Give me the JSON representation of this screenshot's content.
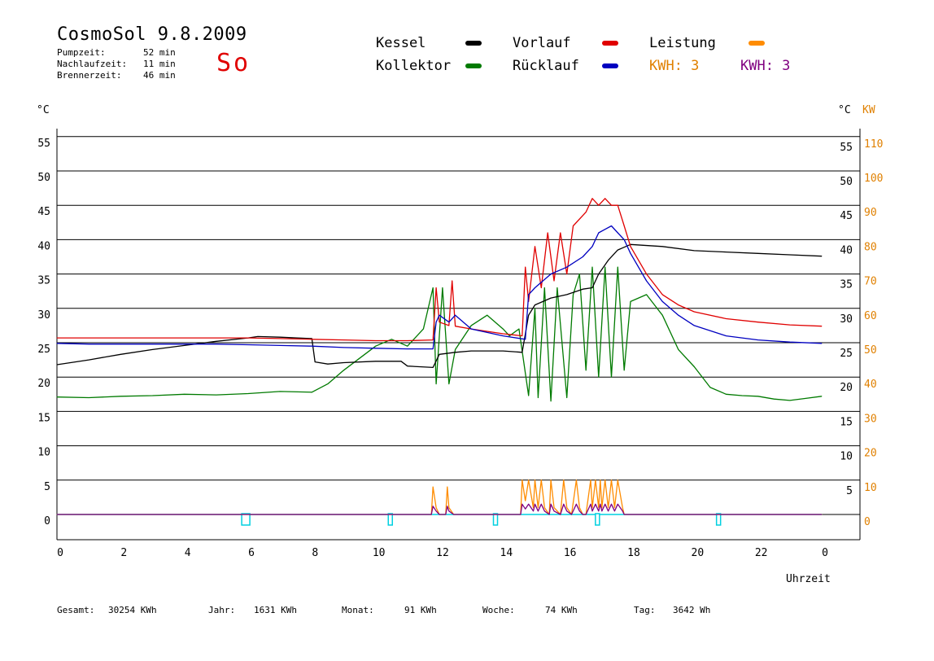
{
  "header": {
    "title": "CosmoSol 9.8.2009",
    "day": "So",
    "info": [
      {
        "label": "Pumpzeit:",
        "value": "52 min"
      },
      {
        "label": "Nachlaufzeit:",
        "value": "11 min"
      },
      {
        "label": "Brennerzeit:",
        "value": "46 min"
      }
    ]
  },
  "legend": {
    "kessel": "Kessel",
    "kollektor": "Kollektor",
    "vorlauf": "Vorlauf",
    "ruecklauf": "Rücklauf",
    "leistung": "Leistung",
    "kwh1": "KWH: 3",
    "kwh2": "KWH: 3"
  },
  "footer": {
    "gesamt_label": "Gesamt:",
    "gesamt_value": "30254 KWh",
    "jahr_label": "Jahr:",
    "jahr_value": "1631 KWh",
    "monat_label": "Monat:",
    "monat_value": "91 KWh",
    "woche_label": "Woche:",
    "woche_value": "74 KWh",
    "tag_label": "Tag:",
    "tag_value": "3642 Wh"
  },
  "colors": {
    "kessel": "#000000",
    "kollektor": "#007a00",
    "vorlauf": "#e00000",
    "ruecklauf": "#0000c0",
    "leistung": "#ff8c00",
    "kwh2": "#800080",
    "pump": "#00d0e0",
    "axis_right_kw": "#e08000"
  },
  "chart_data": {
    "type": "line",
    "xlabel": "Uhrzeit",
    "ylabel_left": "°C",
    "ylabel_right": "°C",
    "ylabel_right_kw": "KW",
    "xlim": [
      0,
      24
    ],
    "ylim": [
      0,
      55
    ],
    "x_ticks": [
      "0",
      "2",
      "4",
      "6",
      "8",
      "10",
      "12",
      "14",
      "16",
      "18",
      "20",
      "22",
      "0"
    ],
    "y_ticks": [
      0,
      5,
      10,
      15,
      20,
      25,
      30,
      35,
      40,
      45,
      50,
      55
    ],
    "y2_ticks": [
      0,
      10,
      20,
      30,
      40,
      50,
      60,
      70,
      80,
      90,
      100,
      110
    ],
    "series": [
      {
        "name": "Kessel",
        "x": [
          0,
          1,
          2,
          3,
          4,
          5,
          6,
          6.3,
          7,
          8,
          8.1,
          8.5,
          9,
          10,
          10.5,
          10.8,
          11,
          11.8,
          12,
          12.5,
          13,
          14,
          14.6,
          14.8,
          15,
          15.5,
          16,
          16.5,
          16.8,
          17,
          17.3,
          17.6,
          18,
          19,
          20,
          21,
          22,
          23,
          24
        ],
        "values": [
          21.8,
          22.5,
          23.3,
          24,
          24.6,
          25.2,
          25.7,
          25.9,
          25.8,
          25.6,
          22.2,
          21.9,
          22.1,
          22.3,
          22.3,
          22.3,
          21.6,
          21.4,
          23.3,
          23.6,
          23.8,
          23.8,
          23.6,
          29,
          30.5,
          31.5,
          32,
          32.8,
          33,
          35,
          37,
          38.5,
          39.3,
          39,
          38.4,
          38.2,
          38,
          37.8,
          37.6
        ]
      },
      {
        "name": "Kollektor",
        "x": [
          0,
          1,
          2,
          3,
          4,
          5,
          6,
          7,
          8,
          8.5,
          9,
          10,
          10.5,
          11,
          11.5,
          11.8,
          11.9,
          12.1,
          12.3,
          12.5,
          13,
          13.5,
          14,
          14.2,
          14.5,
          14.8,
          15,
          15.1,
          15.3,
          15.5,
          15.7,
          16,
          16.2,
          16.4,
          16.6,
          16.8,
          17,
          17.2,
          17.4,
          17.6,
          17.8,
          18,
          18.5,
          19,
          19.5,
          20,
          20.5,
          21,
          21.5,
          22,
          22.5,
          23,
          23.5,
          24
        ],
        "values": [
          17.1,
          17.0,
          17.2,
          17.3,
          17.5,
          17.4,
          17.6,
          17.9,
          17.8,
          19,
          21,
          24.5,
          25.5,
          24.5,
          27,
          33,
          19,
          33,
          19,
          24,
          27.5,
          29,
          27,
          26,
          27,
          17.3,
          30,
          17,
          33,
          16.5,
          33,
          17,
          32,
          35,
          21,
          36,
          20,
          36,
          20,
          36,
          21,
          31,
          32,
          29,
          24,
          21.5,
          18.5,
          17.5,
          17.3,
          17.2,
          16.8,
          16.6,
          16.9,
          17.2
        ]
      },
      {
        "name": "Vorlauf",
        "x": [
          0,
          1,
          2,
          3,
          4,
          5,
          6,
          7,
          8,
          9,
          10,
          11,
          11.8,
          11.9,
          12,
          12.3,
          12.4,
          12.5,
          13,
          14,
          14.6,
          14.7,
          14.8,
          15,
          15.2,
          15.4,
          15.6,
          15.8,
          16,
          16.2,
          16.6,
          16.8,
          17,
          17.2,
          17.4,
          17.6,
          17.8,
          18,
          18.5,
          19,
          19.5,
          20,
          21,
          22,
          23,
          24
        ],
        "values": [
          25.7,
          25.7,
          25.7,
          25.7,
          25.7,
          25.7,
          25.7,
          25.6,
          25.5,
          25.4,
          25.3,
          25.3,
          25.4,
          33,
          28,
          27.5,
          34,
          27.4,
          27,
          26.3,
          26,
          36,
          31,
          39,
          33,
          41,
          34,
          41,
          35,
          42,
          44,
          46,
          45,
          46,
          45,
          45,
          42,
          39,
          35,
          32,
          30.5,
          29.5,
          28.5,
          28,
          27.6,
          27.4
        ]
      },
      {
        "name": "Rücklauf",
        "x": [
          0,
          1,
          2,
          3,
          4,
          5,
          6,
          7,
          8,
          9,
          10,
          11,
          11.8,
          11.9,
          12,
          12.3,
          12.5,
          13,
          14,
          14.7,
          14.8,
          15,
          15.5,
          16,
          16.5,
          16.8,
          17,
          17.2,
          17.4,
          17.6,
          17.8,
          18,
          18.5,
          19,
          19.5,
          20,
          21,
          22,
          23,
          24
        ],
        "values": [
          24.9,
          24.8,
          24.8,
          24.8,
          24.8,
          24.8,
          24.7,
          24.6,
          24.5,
          24.3,
          24.2,
          24.1,
          24.1,
          28,
          29,
          28,
          29,
          27,
          26,
          25.5,
          32,
          33,
          35,
          36,
          37.5,
          39,
          41,
          41.5,
          42,
          41,
          40,
          38,
          34,
          31,
          29,
          27.5,
          26,
          25.4,
          25.1,
          24.9
        ]
      },
      {
        "name": "Leistung",
        "x": [
          0,
          11.75,
          11.8,
          11.9,
          12,
          12.2,
          12.25,
          12.3,
          12.45,
          14.55,
          14.6,
          14.7,
          14.8,
          14.95,
          15,
          15.1,
          15.2,
          15.3,
          15.45,
          15.5,
          15.6,
          15.8,
          15.9,
          16,
          16.15,
          16.3,
          16.4,
          16.5,
          16.6,
          16.75,
          16.8,
          16.9,
          17,
          17.05,
          17.1,
          17.2,
          17.3,
          17.4,
          17.5,
          17.6,
          17.75,
          17.8,
          24
        ],
        "values": [
          0,
          0,
          4,
          1,
          0,
          0,
          4,
          1,
          0,
          0,
          5,
          2,
          5,
          1,
          5,
          1,
          5,
          1,
          0,
          5,
          1,
          0,
          5,
          1,
          0,
          5,
          1,
          0,
          0,
          5,
          1,
          5,
          1,
          5,
          1,
          5,
          1,
          5,
          1,
          5,
          1,
          0,
          0
        ]
      },
      {
        "name": "KWH",
        "x": [
          0,
          11.75,
          11.8,
          11.9,
          12,
          12.2,
          12.25,
          12.3,
          12.45,
          14.55,
          14.6,
          14.7,
          14.8,
          14.95,
          15,
          15.1,
          15.2,
          15.3,
          15.45,
          15.5,
          15.6,
          15.8,
          15.9,
          16,
          16.15,
          16.3,
          16.4,
          16.5,
          16.6,
          16.75,
          16.8,
          16.9,
          17,
          17.05,
          17.1,
          17.2,
          17.3,
          17.4,
          17.5,
          17.6,
          17.75,
          17.8,
          24
        ],
        "values": [
          0,
          0,
          1.2,
          0.5,
          0,
          0,
          1.2,
          0.5,
          0,
          0,
          1.5,
          0.8,
          1.5,
          0.5,
          1.5,
          0.5,
          1.5,
          0.5,
          0,
          1.5,
          0.5,
          0,
          1.5,
          0.5,
          0,
          1.5,
          0.5,
          0,
          0,
          1.5,
          0.5,
          1.5,
          0.5,
          1.5,
          0.5,
          1.5,
          0.5,
          1.5,
          0.5,
          1.5,
          0.5,
          0,
          0
        ]
      }
    ],
    "pump_markers": [
      5.9,
      10.5,
      13.8,
      17.0,
      20.8
    ],
    "grid": true
  }
}
